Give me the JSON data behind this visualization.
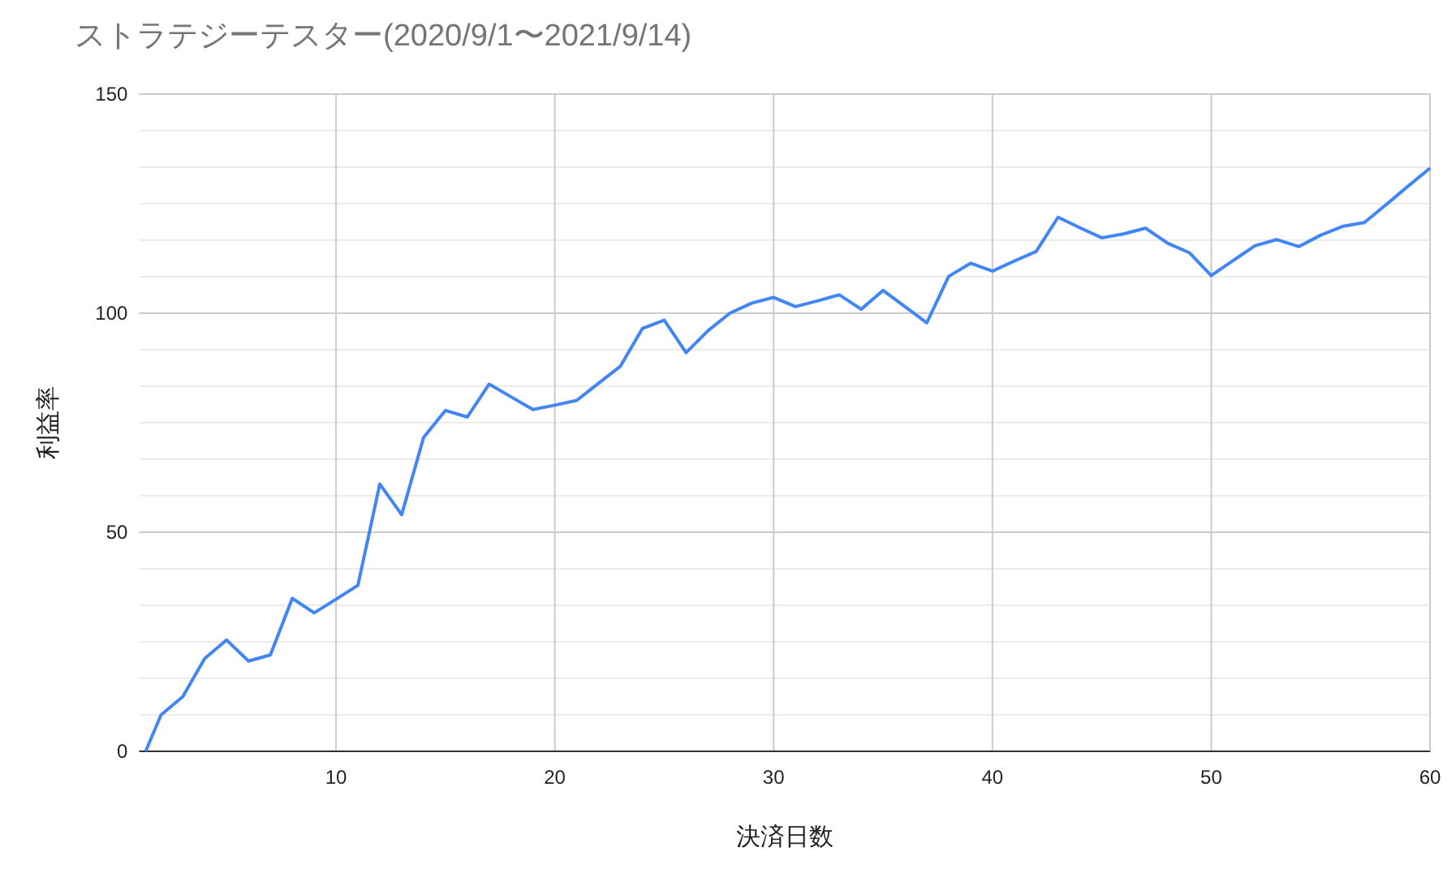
{
  "chart_data": {
    "type": "line",
    "title": "ストラテジーテスター(2020/9/1〜2021/9/14)",
    "xlabel": "決済日数",
    "ylabel": "利益率",
    "series": [
      {
        "color": "#4285f4",
        "x": [
          1.3,
          2,
          3,
          4,
          5,
          6,
          7,
          8,
          9,
          10,
          11,
          12,
          13,
          14,
          15,
          16,
          17,
          18,
          19,
          20,
          21,
          22,
          23,
          24,
          25,
          26,
          27,
          28,
          29,
          30,
          31,
          32,
          33,
          34,
          35,
          36,
          37,
          38,
          39,
          40,
          41,
          42,
          43,
          44,
          45,
          46,
          47,
          48,
          49,
          50,
          51,
          52,
          53,
          54,
          55,
          56,
          57,
          58,
          59,
          60
        ],
        "values": [
          0,
          8.3,
          12.5,
          21.2,
          25.4,
          20.6,
          22.0,
          34.9,
          31.6,
          34.7,
          37.9,
          61.0,
          54.0,
          71.6,
          77.8,
          76.3,
          83.8,
          80.9,
          78.0,
          79.0,
          80.1,
          84.0,
          87.9,
          96.5,
          98.4,
          91.0,
          96.0,
          100.0,
          102.3,
          103.6,
          101.5,
          102.8,
          104.2,
          100.9,
          105.2,
          101.5,
          97.8,
          108.4,
          111.4,
          109.6,
          111.9,
          114.1,
          121.9,
          119.5,
          117.2,
          118.1,
          119.4,
          116.0,
          113.8,
          108.6,
          112.0,
          115.4,
          116.8,
          115.2,
          117.8,
          119.8,
          120.7,
          124.8,
          129.0,
          133.1
        ]
      }
    ],
    "xlim": [
      1,
      60
    ],
    "ylim": [
      0,
      150
    ],
    "xticks": [
      10,
      20,
      30,
      40,
      50,
      60
    ],
    "yticks": [
      0,
      {
        "value": 8.33,
        "label": null
      },
      {
        "value": 16.67,
        "label": null
      },
      {
        "value": 25,
        "label": null
      },
      {
        "value": 33.33,
        "label": null
      },
      {
        "value": 41.67,
        "label": null
      },
      50,
      {
        "value": 58.33,
        "label": null
      },
      {
        "value": 66.67,
        "label": null
      },
      {
        "value": 75,
        "label": null
      },
      {
        "value": 83.33,
        "label": null
      },
      {
        "value": 91.67,
        "label": null
      },
      100,
      {
        "value": 108.33,
        "label": null
      },
      {
        "value": 116.67,
        "label": null
      },
      {
        "value": 125,
        "label": null
      },
      {
        "value": 133.33,
        "label": null
      },
      {
        "value": 141.67,
        "label": null
      },
      150
    ],
    "grid": true
  }
}
